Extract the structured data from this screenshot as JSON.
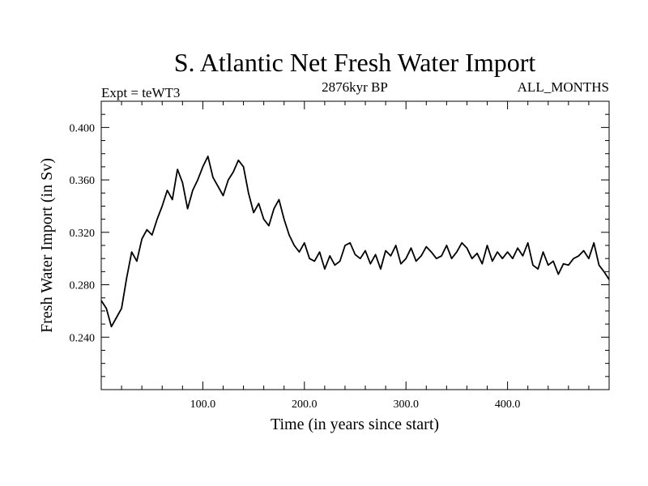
{
  "chart_data": {
    "type": "line",
    "title": "S. Atlantic Net Fresh Water Import",
    "subtitle_left": "Expt = teWT3",
    "subtitle_center": "2876kyr BP",
    "subtitle_right": "ALL_MONTHS",
    "xlabel": "Time (in years since start)",
    "ylabel": "Fresh Water Import (in Sv)",
    "xlim": [
      0,
      500
    ],
    "ylim": [
      0.2,
      0.42
    ],
    "x_major_ticks": [
      100,
      200,
      300,
      400
    ],
    "x_tick_labels": [
      "100.0",
      "200.0",
      "300.0",
      "400.0"
    ],
    "y_major_ticks": [
      0.24,
      0.28,
      0.32,
      0.36,
      0.4
    ],
    "y_tick_labels": [
      "0.240",
      "0.280",
      "0.320",
      "0.360",
      "0.400"
    ],
    "series": [
      {
        "name": "Fresh Water Import",
        "x": [
          0,
          5,
          10,
          15,
          20,
          25,
          30,
          35,
          40,
          45,
          50,
          55,
          60,
          65,
          70,
          75,
          80,
          85,
          90,
          95,
          100,
          105,
          110,
          115,
          120,
          125,
          130,
          135,
          140,
          145,
          150,
          155,
          160,
          165,
          170,
          175,
          180,
          185,
          190,
          195,
          200,
          205,
          210,
          215,
          220,
          225,
          230,
          235,
          240,
          245,
          250,
          255,
          260,
          265,
          270,
          275,
          280,
          285,
          290,
          295,
          300,
          305,
          310,
          315,
          320,
          325,
          330,
          335,
          340,
          345,
          350,
          355,
          360,
          365,
          370,
          375,
          380,
          385,
          390,
          395,
          400,
          405,
          410,
          415,
          420,
          425,
          430,
          435,
          440,
          445,
          450,
          455,
          460,
          465,
          470,
          475,
          480,
          485,
          490,
          495,
          500
        ],
        "values": [
          0.268,
          0.262,
          0.248,
          0.255,
          0.262,
          0.285,
          0.305,
          0.298,
          0.315,
          0.322,
          0.318,
          0.33,
          0.34,
          0.352,
          0.345,
          0.368,
          0.358,
          0.338,
          0.352,
          0.36,
          0.37,
          0.378,
          0.362,
          0.355,
          0.348,
          0.36,
          0.366,
          0.375,
          0.37,
          0.35,
          0.335,
          0.342,
          0.33,
          0.325,
          0.338,
          0.345,
          0.33,
          0.318,
          0.31,
          0.305,
          0.312,
          0.3,
          0.298,
          0.305,
          0.292,
          0.302,
          0.295,
          0.298,
          0.31,
          0.312,
          0.303,
          0.3,
          0.306,
          0.296,
          0.303,
          0.292,
          0.306,
          0.302,
          0.31,
          0.296,
          0.3,
          0.308,
          0.298,
          0.302,
          0.309,
          0.305,
          0.3,
          0.302,
          0.31,
          0.3,
          0.305,
          0.312,
          0.308,
          0.3,
          0.304,
          0.296,
          0.31,
          0.298,
          0.305,
          0.3,
          0.305,
          0.3,
          0.308,
          0.302,
          0.312,
          0.295,
          0.292,
          0.305,
          0.295,
          0.298,
          0.288,
          0.296,
          0.295,
          0.3,
          0.302,
          0.306,
          0.3,
          0.312,
          0.295,
          0.29,
          0.284
        ]
      }
    ]
  },
  "style": {
    "line_color": "#000000",
    "axis_color": "#000000",
    "background": "#ffffff"
  }
}
